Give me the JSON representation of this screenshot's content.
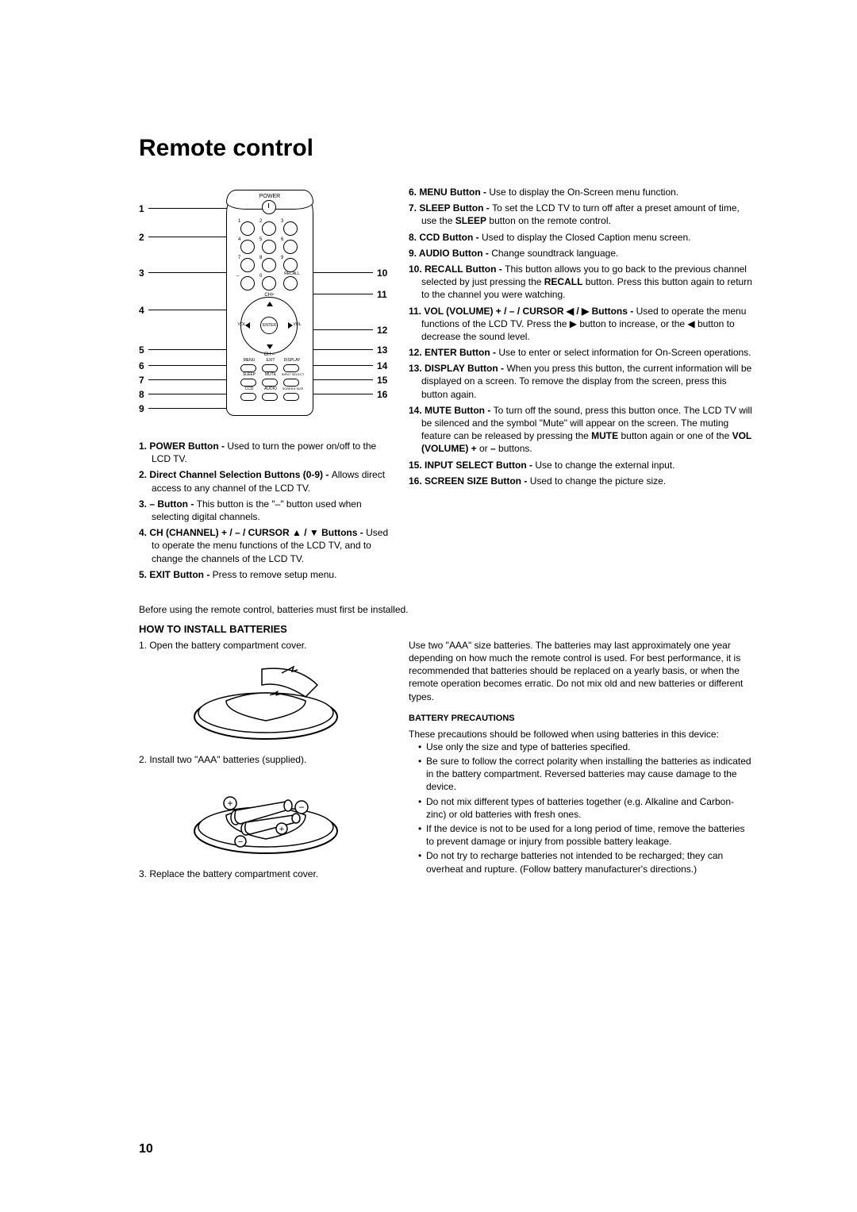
{
  "title": "Remote control",
  "pageNumber": "10",
  "callouts_left": [
    "1",
    "2",
    "3",
    "4",
    "5",
    "6",
    "7",
    "8",
    "9"
  ],
  "callouts_right": [
    "10",
    "11",
    "12",
    "13",
    "14",
    "15",
    "16"
  ],
  "remote_labels": {
    "power": "POWER",
    "recall": "RECALL",
    "chplus": "CH+",
    "chminus": "CH –",
    "vol_l": "VOL",
    "vol_r": "VOL",
    "enter": "ENTER",
    "menu": "MENU",
    "exit": "EXIT",
    "display": "DISPLAY",
    "sleep": "SLEEP",
    "mute": "MUTE",
    "input": "INPUT SELECT",
    "ccd": "CCD",
    "audio": "AUDIO",
    "screen": "SCREEN SIZE",
    "minus": "–"
  },
  "descriptions_left": [
    {
      "n": "1.",
      "b": "POWER Button - ",
      "t": "Used to turn the power on/off to the LCD TV."
    },
    {
      "n": "2.",
      "b": "Direct Channel Selection Buttons (0-9) - ",
      "t": "Allows direct access to any channel of the LCD TV."
    },
    {
      "n": "3.",
      "b": "– Button - ",
      "t": "This button is the \"–\" button used when selecting digital channels."
    },
    {
      "n": "4.",
      "b": "CH (CHANNEL) + / – / CURSOR ▲ / ▼ Buttons - ",
      "t": "Used to operate the menu functions of the LCD TV, and to change the channels of the LCD TV."
    },
    {
      "n": "5.",
      "b": "EXIT Button - ",
      "t": "Press to remove setup menu."
    }
  ],
  "descriptions_right": [
    {
      "n": "6.",
      "b": "MENU Button - ",
      "t": "Use to display the On-Screen menu function."
    },
    {
      "n": "7.",
      "b": "SLEEP Button - ",
      "t": "To set the LCD TV to turn off after a preset amount of time, use the ",
      "b2": "SLEEP",
      "t2": " button on the remote control."
    },
    {
      "n": "8.",
      "b": "CCD Button - ",
      "t": "Used to display the Closed Caption menu screen."
    },
    {
      "n": "9.",
      "b": "AUDIO Button - ",
      "t": "Change soundtrack language."
    },
    {
      "n": "10.",
      "b": "RECALL Button - ",
      "t": "This button allows you to go back to the previous channel selected by just pressing the ",
      "b2": "RECALL",
      "t2": " button. Press this button again to return to the channel you were watching."
    },
    {
      "n": "11.",
      "b": "VOL (VOLUME) + / – / CURSOR ◀ / ▶ Buttons - ",
      "t": "Used to operate the menu functions of the LCD TV. Press the ▶ button to increase, or the ◀ button to decrease the sound level."
    },
    {
      "n": "12.",
      "b": "ENTER Button - ",
      "t": "Use to enter or select information for On-Screen operations."
    },
    {
      "n": "13.",
      "b": "DISPLAY Button - ",
      "t": "When you press this button, the current information will be displayed on a screen. To remove the display from the screen, press this button again."
    },
    {
      "n": "14.",
      "b": "MUTE Button - ",
      "t": "To turn off the sound, press this button once. The LCD TV will be silenced and the symbol \"Mute\" will appear on the screen. The muting feature can be released by pressing the ",
      "b2": "MUTE",
      "t2": " button again or one of the ",
      "b3": "VOL (VOLUME) +",
      "t3": " or ",
      "b4": "–",
      "t4": " buttons."
    },
    {
      "n": "15.",
      "b": "INPUT SELECT Button - ",
      "t": "Use to change the external input."
    },
    {
      "n": "16.",
      "b": "SCREEN SIZE Button - ",
      "t": "Used to change the picture size."
    }
  ],
  "before_text": "Before using the remote control, batteries must first be installed.",
  "install_title": "HOW TO INSTALL BATTERIES",
  "install_steps": [
    "1. Open the battery compartment cover.",
    "2. Install two \"AAA\" batteries (supplied).",
    "3. Replace the battery compartment cover."
  ],
  "install_right_text": "Use two \"AAA\" size batteries. The batteries may last approximately one year depending on how much the remote control is used. For best performance, it is recommended that batteries should be replaced on a yearly basis, or when the remote operation becomes erratic. Do not mix old and new batteries or different types.",
  "precautions_title": "BATTERY PRECAUTIONS",
  "precautions_intro": "These precautions should be followed when using batteries in this device:",
  "precautions": [
    "Use only the size and type of batteries specified.",
    "Be sure to follow the correct polarity when installing the batteries as indicated in the battery compartment. Reversed batteries may cause damage to the device.",
    "Do not mix different types of batteries together (e.g. Alkaline and Carbon-zinc) or old batteries with fresh ones.",
    "If the device is not to be used for a long period of time, remove the batteries to prevent damage or injury from possible battery leakage.",
    "Do not try to recharge batteries not intended to be recharged; they can overheat and rupture. (Follow battery manufacturer's directions.)"
  ]
}
